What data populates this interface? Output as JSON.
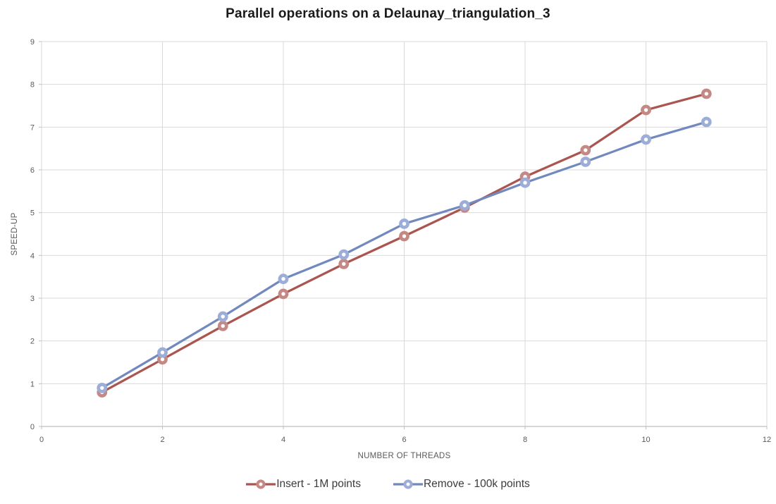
{
  "title": "Parallel operations on a Delaunay_triangulation_3",
  "chart_data": {
    "type": "line",
    "title": "Parallel operations on a Delaunay_triangulation_3",
    "xlabel": "NUMBER OF THREADS",
    "ylabel": "SPEED-UP",
    "xlim": [
      0,
      12
    ],
    "ylim": [
      0,
      9
    ],
    "xticks": [
      0,
      2,
      4,
      6,
      8,
      10,
      12
    ],
    "yticks": [
      0,
      1,
      2,
      3,
      4,
      5,
      6,
      7,
      8,
      9
    ],
    "grid": true,
    "legend_position": "bottom",
    "x": [
      1,
      2,
      3,
      4,
      5,
      6,
      7,
      8,
      9,
      10,
      11
    ],
    "series": [
      {
        "name": "Insert - 1M points",
        "color": "#AA5550",
        "marker_color": "#C48984",
        "values": [
          0.8,
          1.57,
          2.35,
          3.1,
          3.8,
          4.45,
          5.12,
          5.84,
          6.46,
          7.4,
          7.78
        ]
      },
      {
        "name": "Remove - 100k points",
        "color": "#7289BF",
        "marker_color": "#9CAED8",
        "values": [
          0.9,
          1.73,
          2.57,
          3.45,
          4.02,
          4.74,
          5.17,
          5.7,
          6.19,
          6.71,
          7.12
        ]
      }
    ]
  },
  "colors": {
    "background": "#FFFFFF",
    "gridline": "#D9D9D9",
    "axis_line": "#BFBFBF",
    "tick_label": "#595959",
    "title_text": "#1A1A1A",
    "legend_text": "#3B3B3B"
  }
}
